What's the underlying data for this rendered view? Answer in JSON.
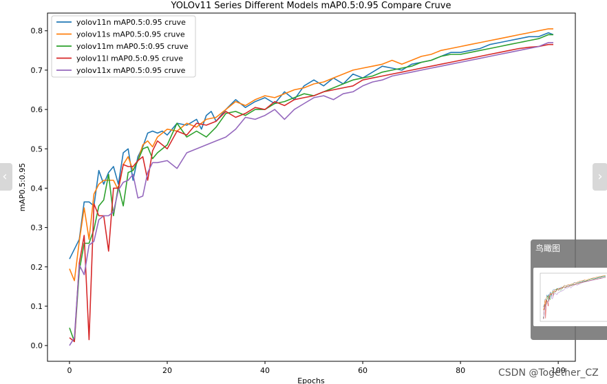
{
  "chart_data": {
    "type": "line",
    "title": "YOLOv11 Series Different Models mAP0.5:0.95 Compare Cruve",
    "xlabel": "Epochs",
    "ylabel": "mAP0.5:0.95",
    "xlim": [
      -4.5,
      103.5
    ],
    "ylim": [
      -0.04,
      0.845
    ],
    "xticks": [
      0,
      20,
      40,
      60,
      80,
      100
    ],
    "yticks": [
      0.0,
      0.1,
      0.2,
      0.3,
      0.4,
      0.5,
      0.6,
      0.7,
      0.8
    ],
    "legend_position": "top-left",
    "grid": false,
    "series": [
      {
        "name": "yolov11n mAP0.5:0.95 cruve",
        "color": "#1f77b4",
        "points": [
          [
            0,
            0.22
          ],
          [
            2,
            0.27
          ],
          [
            3,
            0.365
          ],
          [
            4,
            0.365
          ],
          [
            5,
            0.355
          ],
          [
            6,
            0.445
          ],
          [
            7,
            0.41
          ],
          [
            8,
            0.44
          ],
          [
            9,
            0.455
          ],
          [
            10,
            0.41
          ],
          [
            11,
            0.49
          ],
          [
            12,
            0.5
          ],
          [
            13,
            0.42
          ],
          [
            14,
            0.48
          ],
          [
            15,
            0.505
          ],
          [
            16,
            0.54
          ],
          [
            17,
            0.545
          ],
          [
            18,
            0.54
          ],
          [
            19,
            0.545
          ],
          [
            20,
            0.535
          ],
          [
            22,
            0.565
          ],
          [
            24,
            0.56
          ],
          [
            26,
            0.575
          ],
          [
            27,
            0.55
          ],
          [
            28,
            0.585
          ],
          [
            29,
            0.595
          ],
          [
            30,
            0.57
          ],
          [
            32,
            0.6
          ],
          [
            34,
            0.625
          ],
          [
            36,
            0.605
          ],
          [
            38,
            0.62
          ],
          [
            40,
            0.63
          ],
          [
            42,
            0.615
          ],
          [
            44,
            0.645
          ],
          [
            46,
            0.625
          ],
          [
            48,
            0.66
          ],
          [
            50,
            0.675
          ],
          [
            52,
            0.66
          ],
          [
            54,
            0.68
          ],
          [
            56,
            0.665
          ],
          [
            58,
            0.69
          ],
          [
            60,
            0.68
          ],
          [
            62,
            0.695
          ],
          [
            64,
            0.71
          ],
          [
            66,
            0.705
          ],
          [
            68,
            0.7
          ],
          [
            70,
            0.715
          ],
          [
            72,
            0.72
          ],
          [
            74,
            0.725
          ],
          [
            76,
            0.735
          ],
          [
            78,
            0.745
          ],
          [
            80,
            0.745
          ],
          [
            82,
            0.75
          ],
          [
            84,
            0.755
          ],
          [
            86,
            0.765
          ],
          [
            88,
            0.77
          ],
          [
            90,
            0.775
          ],
          [
            92,
            0.78
          ],
          [
            94,
            0.785
          ],
          [
            96,
            0.785
          ],
          [
            98,
            0.795
          ],
          [
            99,
            0.79
          ]
        ]
      },
      {
        "name": "yolov11s mAP0.5:0.95 cruve",
        "color": "#ff7f0e",
        "points": [
          [
            0,
            0.195
          ],
          [
            1,
            0.165
          ],
          [
            2,
            0.265
          ],
          [
            3,
            0.35
          ],
          [
            4,
            0.27
          ],
          [
            5,
            0.385
          ],
          [
            6,
            0.41
          ],
          [
            7,
            0.42
          ],
          [
            8,
            0.42
          ],
          [
            9,
            0.42
          ],
          [
            10,
            0.395
          ],
          [
            11,
            0.46
          ],
          [
            12,
            0.48
          ],
          [
            13,
            0.445
          ],
          [
            14,
            0.47
          ],
          [
            15,
            0.51
          ],
          [
            16,
            0.52
          ],
          [
            17,
            0.505
          ],
          [
            18,
            0.53
          ],
          [
            20,
            0.55
          ],
          [
            22,
            0.545
          ],
          [
            24,
            0.565
          ],
          [
            26,
            0.555
          ],
          [
            28,
            0.575
          ],
          [
            30,
            0.58
          ],
          [
            32,
            0.6
          ],
          [
            34,
            0.62
          ],
          [
            36,
            0.61
          ],
          [
            38,
            0.625
          ],
          [
            40,
            0.635
          ],
          [
            42,
            0.63
          ],
          [
            44,
            0.64
          ],
          [
            46,
            0.65
          ],
          [
            48,
            0.655
          ],
          [
            50,
            0.665
          ],
          [
            52,
            0.67
          ],
          [
            54,
            0.68
          ],
          [
            56,
            0.69
          ],
          [
            58,
            0.7
          ],
          [
            60,
            0.705
          ],
          [
            62,
            0.71
          ],
          [
            64,
            0.715
          ],
          [
            66,
            0.725
          ],
          [
            68,
            0.715
          ],
          [
            70,
            0.725
          ],
          [
            72,
            0.735
          ],
          [
            74,
            0.74
          ],
          [
            76,
            0.75
          ],
          [
            78,
            0.755
          ],
          [
            80,
            0.76
          ],
          [
            82,
            0.765
          ],
          [
            84,
            0.77
          ],
          [
            86,
            0.775
          ],
          [
            88,
            0.78
          ],
          [
            90,
            0.785
          ],
          [
            92,
            0.79
          ],
          [
            94,
            0.795
          ],
          [
            96,
            0.8
          ],
          [
            98,
            0.805
          ],
          [
            99,
            0.805
          ]
        ]
      },
      {
        "name": "yolov11m mAP0.5:0.95 cruve",
        "color": "#2ca02c",
        "points": [
          [
            0,
            0.045
          ],
          [
            1,
            0.01
          ],
          [
            2,
            0.19
          ],
          [
            3,
            0.26
          ],
          [
            4,
            0.26
          ],
          [
            5,
            0.295
          ],
          [
            6,
            0.355
          ],
          [
            7,
            0.37
          ],
          [
            8,
            0.435
          ],
          [
            9,
            0.33
          ],
          [
            10,
            0.405
          ],
          [
            11,
            0.355
          ],
          [
            12,
            0.44
          ],
          [
            13,
            0.445
          ],
          [
            14,
            0.47
          ],
          [
            15,
            0.5
          ],
          [
            16,
            0.505
          ],
          [
            17,
            0.475
          ],
          [
            18,
            0.49
          ],
          [
            20,
            0.51
          ],
          [
            22,
            0.565
          ],
          [
            24,
            0.53
          ],
          [
            26,
            0.545
          ],
          [
            28,
            0.53
          ],
          [
            30,
            0.555
          ],
          [
            32,
            0.59
          ],
          [
            34,
            0.595
          ],
          [
            36,
            0.585
          ],
          [
            38,
            0.6
          ],
          [
            40,
            0.6
          ],
          [
            42,
            0.615
          ],
          [
            44,
            0.62
          ],
          [
            46,
            0.63
          ],
          [
            48,
            0.64
          ],
          [
            50,
            0.635
          ],
          [
            52,
            0.645
          ],
          [
            54,
            0.655
          ],
          [
            56,
            0.665
          ],
          [
            58,
            0.675
          ],
          [
            60,
            0.68
          ],
          [
            62,
            0.685
          ],
          [
            64,
            0.695
          ],
          [
            66,
            0.7
          ],
          [
            68,
            0.705
          ],
          [
            70,
            0.71
          ],
          [
            72,
            0.72
          ],
          [
            74,
            0.725
          ],
          [
            76,
            0.735
          ],
          [
            78,
            0.74
          ],
          [
            80,
            0.74
          ],
          [
            82,
            0.745
          ],
          [
            84,
            0.75
          ],
          [
            86,
            0.755
          ],
          [
            88,
            0.76
          ],
          [
            90,
            0.765
          ],
          [
            92,
            0.77
          ],
          [
            94,
            0.775
          ],
          [
            96,
            0.78
          ],
          [
            98,
            0.79
          ],
          [
            99,
            0.79
          ]
        ]
      },
      {
        "name": "yolov11l mAP0.5:0.95 cruve",
        "color": "#d62728",
        "points": [
          [
            0,
            0.02
          ],
          [
            1,
            0.01
          ],
          [
            2,
            0.21
          ],
          [
            3,
            0.28
          ],
          [
            4,
            0.015
          ],
          [
            5,
            0.36
          ],
          [
            6,
            0.33
          ],
          [
            7,
            0.33
          ],
          [
            8,
            0.24
          ],
          [
            9,
            0.4
          ],
          [
            10,
            0.4
          ],
          [
            11,
            0.46
          ],
          [
            12,
            0.455
          ],
          [
            13,
            0.455
          ],
          [
            14,
            0.47
          ],
          [
            15,
            0.48
          ],
          [
            16,
            0.42
          ],
          [
            17,
            0.495
          ],
          [
            18,
            0.52
          ],
          [
            20,
            0.5
          ],
          [
            22,
            0.545
          ],
          [
            24,
            0.535
          ],
          [
            26,
            0.565
          ],
          [
            28,
            0.56
          ],
          [
            30,
            0.57
          ],
          [
            32,
            0.595
          ],
          [
            34,
            0.58
          ],
          [
            36,
            0.59
          ],
          [
            38,
            0.605
          ],
          [
            40,
            0.6
          ],
          [
            42,
            0.62
          ],
          [
            44,
            0.61
          ],
          [
            46,
            0.625
          ],
          [
            48,
            0.63
          ],
          [
            50,
            0.635
          ],
          [
            52,
            0.645
          ],
          [
            54,
            0.65
          ],
          [
            56,
            0.655
          ],
          [
            58,
            0.66
          ],
          [
            60,
            0.675
          ],
          [
            62,
            0.68
          ],
          [
            64,
            0.685
          ],
          [
            66,
            0.69
          ],
          [
            68,
            0.695
          ],
          [
            70,
            0.7
          ],
          [
            72,
            0.705
          ],
          [
            74,
            0.71
          ],
          [
            76,
            0.715
          ],
          [
            78,
            0.72
          ],
          [
            80,
            0.725
          ],
          [
            82,
            0.73
          ],
          [
            84,
            0.735
          ],
          [
            86,
            0.74
          ],
          [
            88,
            0.745
          ],
          [
            90,
            0.75
          ],
          [
            92,
            0.755
          ],
          [
            94,
            0.758
          ],
          [
            96,
            0.76
          ],
          [
            98,
            0.765
          ],
          [
            99,
            0.765
          ]
        ]
      },
      {
        "name": "yolov11x mAP0.5:0.95 cruve",
        "color": "#9467bd",
        "points": [
          [
            0,
            0.0
          ],
          [
            1,
            0.02
          ],
          [
            2,
            0.205
          ],
          [
            3,
            0.18
          ],
          [
            4,
            0.255
          ],
          [
            5,
            0.265
          ],
          [
            6,
            0.32
          ],
          [
            7,
            0.33
          ],
          [
            8,
            0.33
          ],
          [
            9,
            0.34
          ],
          [
            10,
            0.395
          ],
          [
            11,
            0.415
          ],
          [
            12,
            0.42
          ],
          [
            13,
            0.435
          ],
          [
            14,
            0.375
          ],
          [
            15,
            0.38
          ],
          [
            16,
            0.44
          ],
          [
            17,
            0.465
          ],
          [
            18,
            0.465
          ],
          [
            20,
            0.47
          ],
          [
            22,
            0.45
          ],
          [
            24,
            0.49
          ],
          [
            26,
            0.5
          ],
          [
            28,
            0.51
          ],
          [
            30,
            0.52
          ],
          [
            32,
            0.53
          ],
          [
            34,
            0.55
          ],
          [
            36,
            0.58
          ],
          [
            38,
            0.575
          ],
          [
            40,
            0.585
          ],
          [
            42,
            0.6
          ],
          [
            44,
            0.575
          ],
          [
            46,
            0.6
          ],
          [
            48,
            0.615
          ],
          [
            50,
            0.63
          ],
          [
            52,
            0.635
          ],
          [
            54,
            0.625
          ],
          [
            56,
            0.64
          ],
          [
            58,
            0.645
          ],
          [
            60,
            0.66
          ],
          [
            62,
            0.67
          ],
          [
            64,
            0.675
          ],
          [
            66,
            0.685
          ],
          [
            68,
            0.69
          ],
          [
            70,
            0.695
          ],
          [
            72,
            0.7
          ],
          [
            74,
            0.705
          ],
          [
            76,
            0.71
          ],
          [
            78,
            0.715
          ],
          [
            80,
            0.72
          ],
          [
            82,
            0.725
          ],
          [
            84,
            0.73
          ],
          [
            86,
            0.735
          ],
          [
            88,
            0.74
          ],
          [
            90,
            0.745
          ],
          [
            92,
            0.75
          ],
          [
            94,
            0.755
          ],
          [
            96,
            0.76
          ],
          [
            98,
            0.77
          ],
          [
            99,
            0.77
          ]
        ]
      }
    ]
  },
  "birdseye": {
    "title": "鸟瞰图"
  },
  "watermark": "CSDN @Together_CZ",
  "nav": {
    "left_icon": "chevron-left-icon",
    "right_icon": "chevron-right-icon"
  }
}
